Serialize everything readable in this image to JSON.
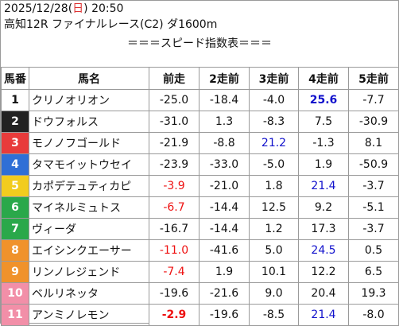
{
  "header": {
    "date": "2025/12/28",
    "dow_open": "(",
    "dow": "日",
    "dow_close": ")",
    "time": "20:50",
    "race": "高知12R ファイナルレース(C2) ダ1600m"
  },
  "caption": "＝＝＝スピード指数表＝＝＝",
  "columns": [
    "馬番",
    "馬名",
    "前走",
    "2走前",
    "3走前",
    "4走前",
    "5走前"
  ],
  "rows": [
    {
      "no": "1",
      "name": "クリノオリオン",
      "v": [
        "-25.0",
        "-18.4",
        "-4.0",
        "25.6",
        "-7.7"
      ],
      "c": [
        "",
        "",
        "",
        "bluebold",
        ""
      ],
      "bg": "#ffffff",
      "fg": "#111111"
    },
    {
      "no": "2",
      "name": "ドウフォルス",
      "v": [
        "-31.0",
        "1.3",
        "-8.3",
        "7.5",
        "-30.9"
      ],
      "c": [
        "",
        "",
        "",
        "",
        ""
      ],
      "bg": "#222222",
      "fg": "#ffffff"
    },
    {
      "no": "3",
      "name": "モノノフゴールド",
      "v": [
        "-21.9",
        "-8.8",
        "21.2",
        "-1.3",
        "8.1"
      ],
      "c": [
        "",
        "",
        "blue",
        "",
        ""
      ],
      "bg": "#e83b3b",
      "fg": "#ffffff"
    },
    {
      "no": "4",
      "name": "タマモイットウセイ",
      "v": [
        "-23.9",
        "-33.0",
        "-5.0",
        "1.9",
        "-50.9"
      ],
      "c": [
        "",
        "",
        "",
        "",
        ""
      ],
      "bg": "#2f6fd6",
      "fg": "#ffffff"
    },
    {
      "no": "5",
      "name": "カポデテュティカピ",
      "v": [
        "-3.9",
        "-21.0",
        "1.8",
        "21.4",
        "-3.7"
      ],
      "c": [
        "red",
        "",
        "",
        "blue",
        ""
      ],
      "bg": "#f2cc1e",
      "fg": "#ffffff"
    },
    {
      "no": "6",
      "name": "マイネルミュトス",
      "v": [
        "-6.7",
        "-14.4",
        "12.5",
        "9.2",
        "-5.1"
      ],
      "c": [
        "red",
        "",
        "",
        "",
        ""
      ],
      "bg": "#2aa84a",
      "fg": "#ffffff"
    },
    {
      "no": "7",
      "name": "ヴィーダ",
      "v": [
        "-16.7",
        "-14.4",
        "1.2",
        "17.3",
        "-3.7"
      ],
      "c": [
        "",
        "",
        "",
        "",
        ""
      ],
      "bg": "#2aa84a",
      "fg": "#ffffff"
    },
    {
      "no": "8",
      "name": "エイシンクエーサー",
      "v": [
        "-11.0",
        "-41.6",
        "5.0",
        "24.5",
        "0.5"
      ],
      "c": [
        "red",
        "",
        "",
        "blue",
        ""
      ],
      "bg": "#f0922b",
      "fg": "#ffffff"
    },
    {
      "no": "9",
      "name": "リンノレジェンド",
      "v": [
        "-7.4",
        "1.9",
        "10.1",
        "12.2",
        "6.5"
      ],
      "c": [
        "red",
        "",
        "",
        "",
        ""
      ],
      "bg": "#f0922b",
      "fg": "#ffffff"
    },
    {
      "no": "10",
      "name": "ベルリネッタ",
      "v": [
        "-19.6",
        "-21.6",
        "9.0",
        "20.4",
        "19.3"
      ],
      "c": [
        "",
        "",
        "",
        "",
        ""
      ],
      "bg": "#f28fa8",
      "fg": "#ffffff"
    },
    {
      "no": "11",
      "name": "アンミノレモン",
      "v": [
        "-2.9",
        "-19.6",
        "-8.5",
        "21.4",
        "-8.0"
      ],
      "c": [
        "redbold",
        "",
        "",
        "blue",
        ""
      ],
      "bg": "#f28fa8",
      "fg": "#ffffff"
    }
  ]
}
